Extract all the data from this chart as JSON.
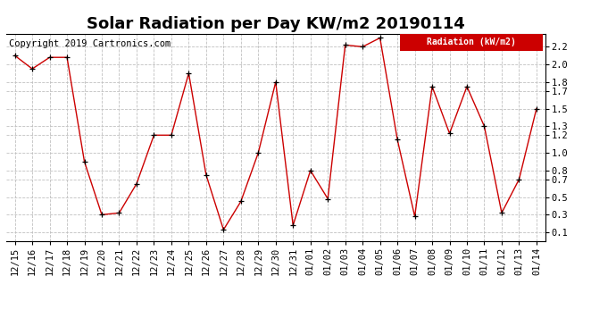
{
  "title": "Solar Radiation per Day KW/m2 20190114",
  "copyright": "Copyright 2019 Cartronics.com",
  "legend_label": "Radiation (kW/m2)",
  "x_labels": [
    "12/15",
    "12/16",
    "12/17",
    "12/18",
    "12/19",
    "12/20",
    "12/21",
    "12/22",
    "12/23",
    "12/24",
    "12/25",
    "12/26",
    "12/27",
    "12/28",
    "12/29",
    "12/30",
    "12/31",
    "01/01",
    "01/02",
    "01/03",
    "01/04",
    "01/05",
    "01/06",
    "01/07",
    "01/08",
    "01/09",
    "01/10",
    "01/11",
    "01/12",
    "01/13",
    "01/14"
  ],
  "y_values": [
    2.1,
    1.95,
    2.08,
    2.08,
    0.9,
    0.3,
    0.32,
    0.65,
    1.2,
    1.2,
    1.9,
    0.75,
    0.13,
    0.45,
    1.0,
    1.8,
    0.18,
    0.8,
    0.48,
    2.22,
    2.2,
    2.3,
    1.15,
    0.28,
    1.75,
    1.22,
    1.75,
    1.3,
    0.32,
    0.7,
    1.5
  ],
  "line_color": "#cc0000",
  "marker_color": "#000000",
  "legend_bg": "#cc0000",
  "legend_text_color": "#ffffff",
  "background_color": "#ffffff",
  "grid_color": "#c0c0c0",
  "y_ticks": [
    0.1,
    0.3,
    0.5,
    0.7,
    0.8,
    1.0,
    1.2,
    1.3,
    1.5,
    1.7,
    1.8,
    2.0,
    2.2
  ],
  "ylim": [
    0.0,
    2.35
  ],
  "title_fontsize": 13,
  "axis_fontsize": 7.5,
  "copyright_fontsize": 7.5
}
